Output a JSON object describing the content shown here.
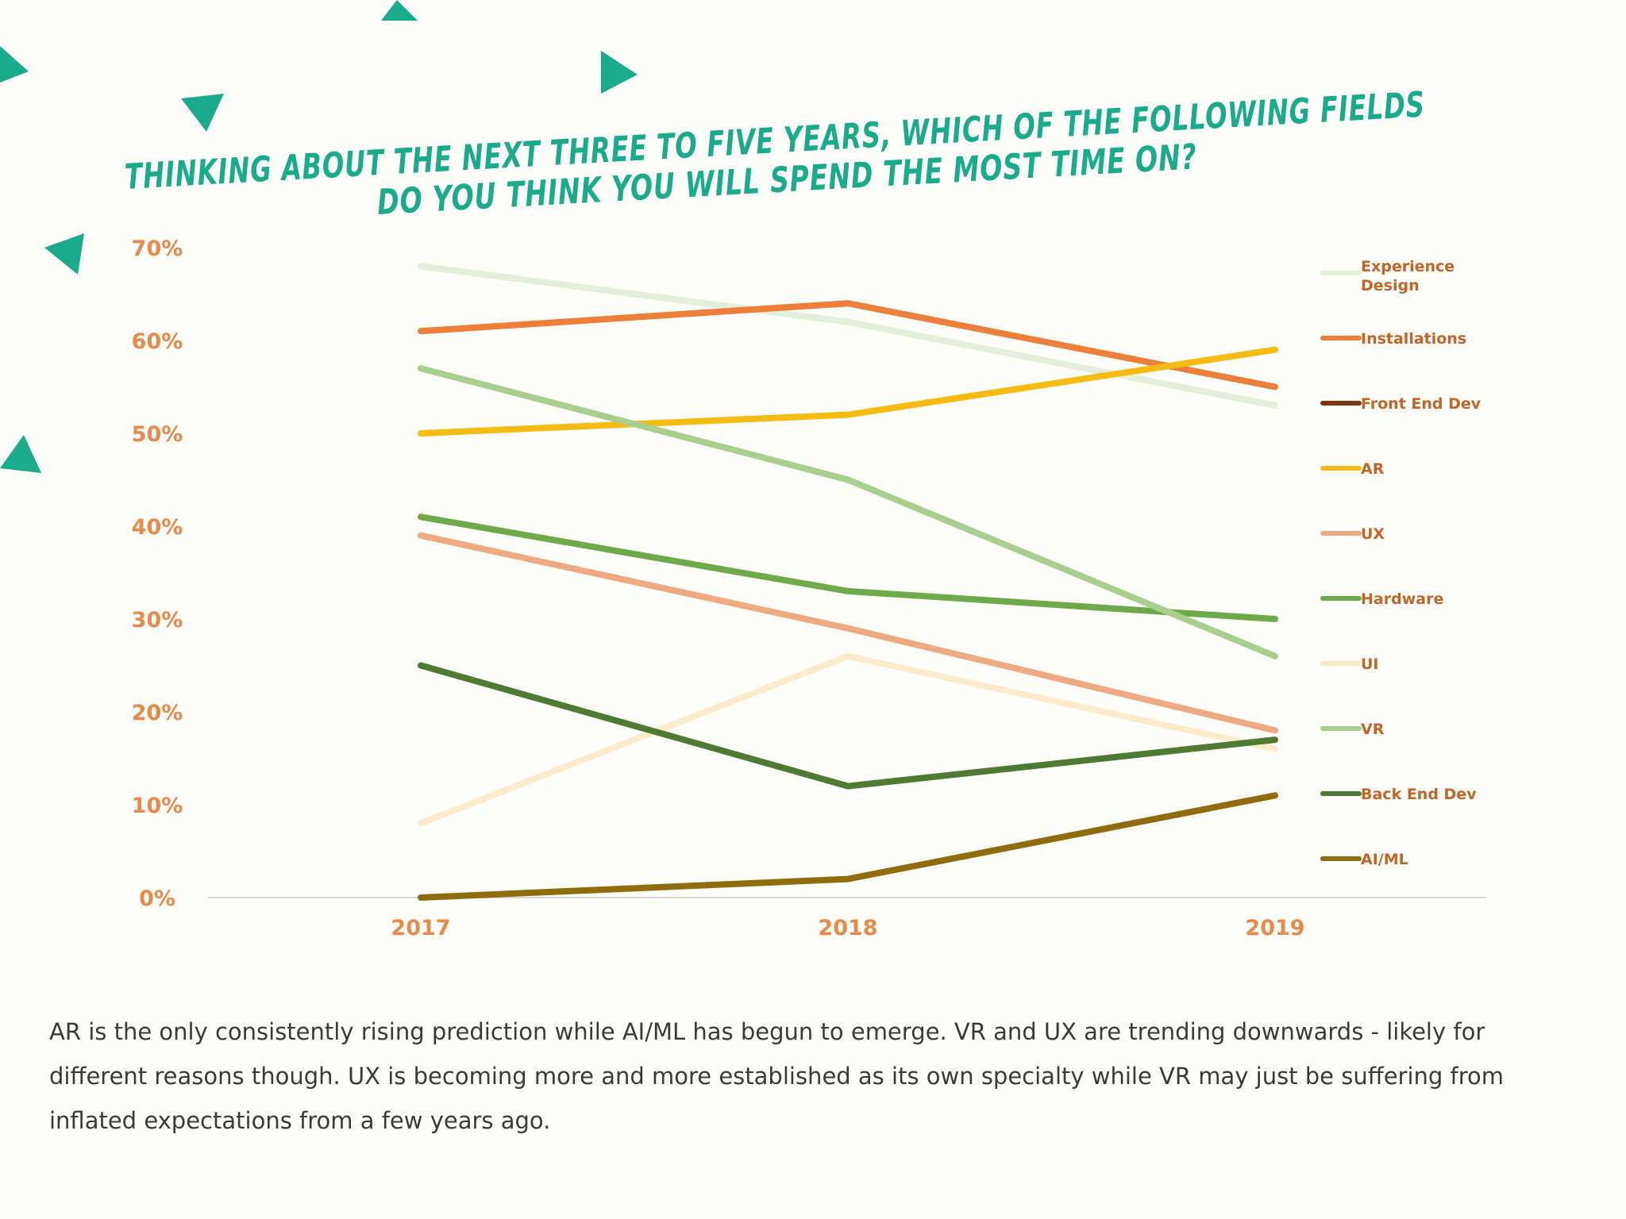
{
  "title": {
    "line1": "THINKING ABOUT THE NEXT THREE TO FIVE YEARS, WHICH OF THE FOLLOWING FIELDS",
    "line2": "DO YOU THINK YOU WILL SPEND THE MOST TIME ON?"
  },
  "caption": "AR is the only consistently rising prediction while AI/ML has begun to emerge. VR and UX are trending downwards - likely for different reasons though. UX is becoming more and more established as its own specialty while VR may just be suffering from inflated expectations from a few years ago.",
  "colors": {
    "accent": "#1aab8a",
    "tick_label": "#e88a4a",
    "legend_label": "#c0662a"
  },
  "chart_data": {
    "type": "line",
    "title": "THINKING ABOUT THE NEXT THREE TO FIVE YEARS, WHICH OF THE FOLLOWING FIELDS DO YOU THINK YOU WILL SPEND THE MOST TIME ON?",
    "xlabel": "",
    "ylabel": "",
    "x": [
      "2017",
      "2018",
      "2019"
    ],
    "ylim": [
      0,
      70
    ],
    "y_ticks": [
      "0%",
      "10%",
      "20%",
      "30%",
      "40%",
      "50%",
      "60%",
      "70%"
    ],
    "y_tick_values": [
      0,
      10,
      20,
      30,
      40,
      50,
      60,
      70
    ],
    "grid": false,
    "legend_position": "right",
    "series": [
      {
        "name": "Experience Design",
        "color": "#e3eedb",
        "values": [
          68,
          62,
          53
        ]
      },
      {
        "name": "Installations",
        "color": "#ec7f3a",
        "values": [
          61,
          64,
          55
        ]
      },
      {
        "name": "Front End Dev",
        "color": "#7a3512",
        "values": [
          null,
          null,
          null
        ]
      },
      {
        "name": "AR",
        "color": "#f6bc14",
        "values": [
          50,
          52,
          59
        ]
      },
      {
        "name": "UX",
        "color": "#eeaa82",
        "values": [
          39,
          29,
          18
        ]
      },
      {
        "name": "Hardware",
        "color": "#6faa4a",
        "values": [
          41,
          33,
          30
        ]
      },
      {
        "name": "UI",
        "color": "#fdeccb",
        "values": [
          8,
          26,
          16
        ]
      },
      {
        "name": "VR",
        "color": "#a8cf8e",
        "values": [
          57,
          45,
          26
        ]
      },
      {
        "name": "Back End Dev",
        "color": "#4f7a33",
        "values": [
          25,
          12,
          17
        ]
      },
      {
        "name": "AI/ML",
        "color": "#8f6c0e",
        "values": [
          0,
          2,
          11
        ]
      }
    ]
  }
}
